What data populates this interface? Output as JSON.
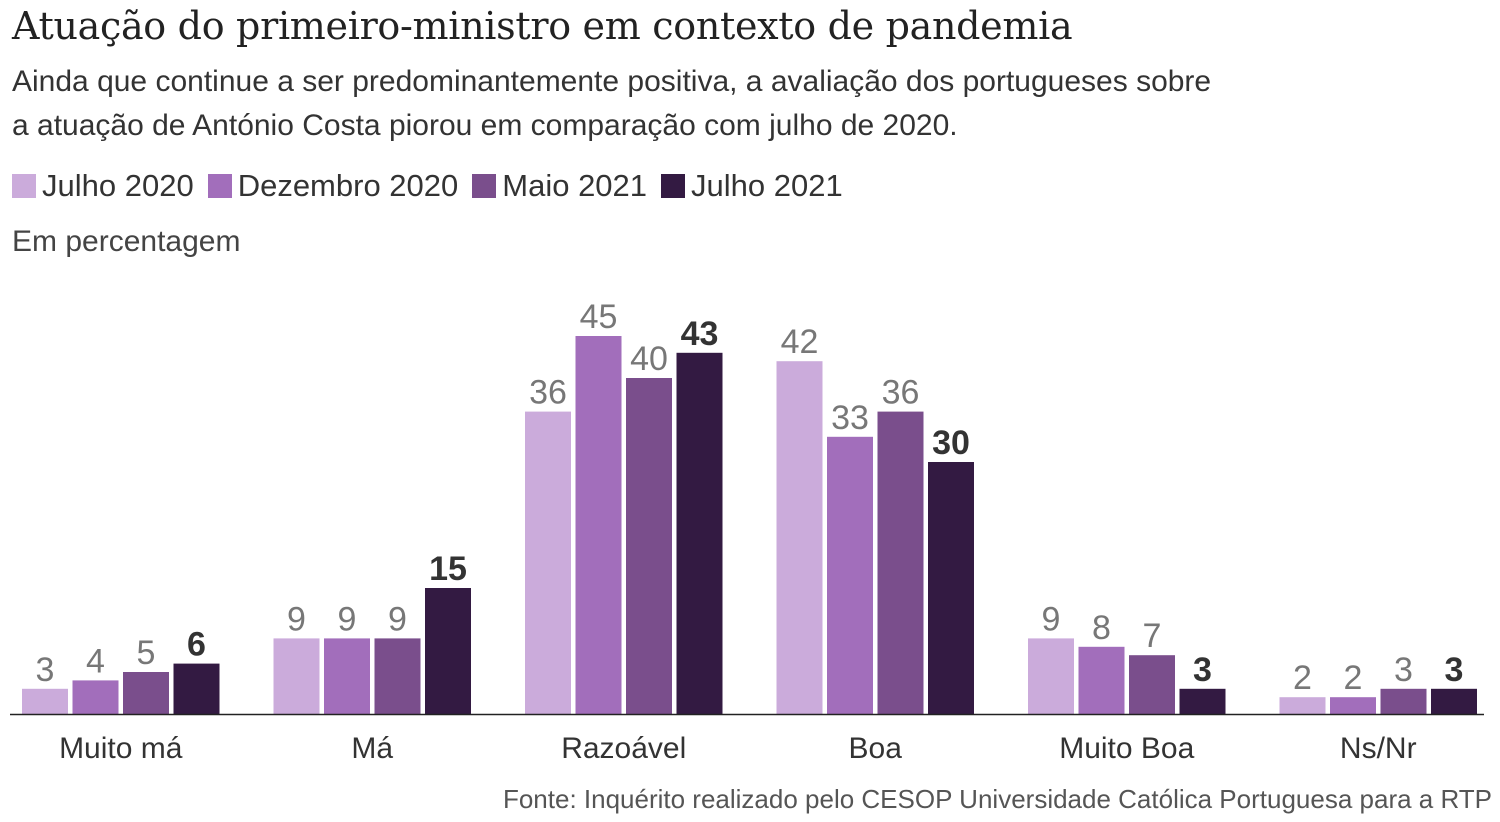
{
  "header": {
    "title": "Atuação do primeiro-ministro em contexto de pandemia",
    "subtitle_line1": "Ainda que continue a ser predominantemente positiva, a avaliação dos portugueses sobre",
    "subtitle_line2": "a atuação de António Costa piorou em comparação com julho de 2020.",
    "unit_label": "Em percentagem"
  },
  "legend": [
    {
      "label": "Julho 2020",
      "color": "#cbabdb"
    },
    {
      "label": "Dezembro 2020",
      "color": "#a26ebb"
    },
    {
      "label": "Maio 2021",
      "color": "#7a4e8c"
    },
    {
      "label": "Julho 2021",
      "color": "#331a42"
    }
  ],
  "source": "Fonte: Inquérito realizado pelo CESOP Universidade Católica Portuguesa para a RTP",
  "chart_data": {
    "type": "bar",
    "title": "Atuação do primeiro-ministro em contexto de pandemia",
    "subtitle": "Ainda que continue a ser predominantemente positiva, a avaliação dos portugueses sobre a atuação de António Costa piorou em comparação com julho de 2020.",
    "xlabel": "",
    "ylabel": "Em percentagem",
    "ylim": [
      0,
      45
    ],
    "grid": false,
    "legend_position": "top-left",
    "categories": [
      "Muito má",
      "Má",
      "Razoável",
      "Boa",
      "Muito Boa",
      "Ns/Nr"
    ],
    "series": [
      {
        "name": "Julho 2020",
        "color": "#cbabdb",
        "values": [
          3,
          9,
          36,
          42,
          9,
          2
        ]
      },
      {
        "name": "Dezembro 2020",
        "color": "#a26ebb",
        "values": [
          4,
          9,
          45,
          33,
          8,
          2
        ]
      },
      {
        "name": "Maio 2021",
        "color": "#7a4e8c",
        "values": [
          5,
          9,
          40,
          36,
          7,
          3
        ]
      },
      {
        "name": "Julho 2021",
        "color": "#331a42",
        "values": [
          6,
          15,
          43,
          30,
          3,
          3
        ]
      }
    ],
    "highlight_series": "Julho 2021"
  }
}
